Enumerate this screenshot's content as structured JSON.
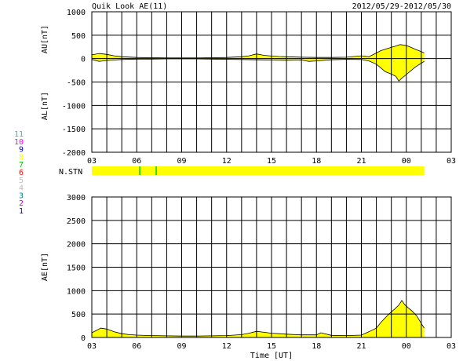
{
  "header": {
    "title": "Quik Look AE(11)",
    "date_range": "2012/05/29-2012/05/30"
  },
  "station_legend": {
    "label": "N.STN",
    "numbers": [
      {
        "text": "11",
        "color": "#00cccc"
      },
      {
        "text": "10",
        "color": "#ff00ff"
      },
      {
        "text": "9",
        "color": "#0000cc"
      },
      {
        "text": "8",
        "color": "#ffff00"
      },
      {
        "text": "7",
        "color": "#00cc00"
      },
      {
        "text": "6",
        "color": "#ff0000"
      },
      {
        "text": "5",
        "color": "#bbbbbb"
      },
      {
        "text": "4",
        "color": "#bbbbbb"
      },
      {
        "text": "3",
        "color": "#008888"
      },
      {
        "text": "2",
        "color": "#cc00cc"
      },
      {
        "text": "1",
        "color": "#0000cc"
      }
    ],
    "bar_color": "#ffff00",
    "marker_color": "#00cc00",
    "markers_hours": [
      6.2,
      7.3
    ]
  },
  "chart_data": [
    {
      "type": "area",
      "name": "AU/AL panel",
      "ylabel_upper": "AU[nT]",
      "ylabel_lower": "AL[nT]",
      "ylim": [
        -2000,
        1000
      ],
      "yticks": [
        1000,
        500,
        0,
        -500,
        -1000,
        -1500,
        -2000
      ],
      "xlim_hours": [
        3,
        27
      ],
      "xtick_labels": [
        "03",
        "06",
        "09",
        "12",
        "15",
        "18",
        "21",
        "00",
        "03"
      ],
      "grid": true,
      "fill_color": "#ffff00",
      "series": [
        {
          "key": "AU",
          "x": [
            3,
            3.5,
            4,
            4.5,
            5,
            6,
            7,
            8,
            9,
            10,
            11,
            12,
            13,
            13.5,
            14,
            14.5,
            15,
            15.5,
            16,
            17,
            18,
            19,
            20,
            21,
            21.5,
            22,
            22.3,
            22.6,
            23,
            23.3,
            23.6,
            24,
            24.3,
            24.6,
            25,
            25.2
          ],
          "values": [
            80,
            110,
            90,
            60,
            40,
            25,
            20,
            15,
            15,
            15,
            20,
            25,
            40,
            60,
            100,
            70,
            55,
            45,
            40,
            30,
            25,
            25,
            30,
            60,
            40,
            120,
            170,
            200,
            240,
            270,
            300,
            280,
            240,
            200,
            150,
            120
          ]
        },
        {
          "key": "AL",
          "x": [
            3,
            3.5,
            4,
            4.5,
            5,
            6,
            7,
            8,
            9,
            10,
            11,
            12,
            13,
            14,
            15,
            16,
            17,
            17.5,
            18,
            19,
            20,
            21,
            21.5,
            22,
            22.3,
            22.6,
            23,
            23.3,
            23.5,
            23.7,
            24,
            24.3,
            24.6,
            25,
            25.2
          ],
          "values": [
            -20,
            -60,
            -40,
            -30,
            -20,
            -10,
            -10,
            -5,
            -5,
            -5,
            -10,
            -15,
            -20,
            -25,
            -30,
            -35,
            -30,
            -60,
            -50,
            -25,
            -15,
            -20,
            -50,
            -120,
            -200,
            -280,
            -330,
            -380,
            -480,
            -420,
            -340,
            -260,
            -180,
            -100,
            -60
          ]
        }
      ]
    },
    {
      "type": "area",
      "name": "AE panel",
      "ylabel": "AE[nT]",
      "xlabel": "Time [UT]",
      "ylim": [
        0,
        3000
      ],
      "yticks": [
        3000,
        2500,
        2000,
        1500,
        1000,
        500,
        0
      ],
      "xlim_hours": [
        3,
        27
      ],
      "xtick_labels": [
        "03",
        "06",
        "09",
        "12",
        "15",
        "18",
        "21",
        "00",
        "03"
      ],
      "grid": true,
      "fill_color": "#ffff00",
      "series": [
        {
          "key": "AE",
          "x": [
            3,
            3.3,
            3.6,
            4,
            4.5,
            5,
            5.5,
            6,
            7,
            8,
            9,
            10,
            11,
            12,
            13,
            13.5,
            14,
            14.5,
            15,
            15.5,
            16,
            17,
            18,
            18.3,
            19,
            20,
            21,
            21.5,
            22,
            22.3,
            22.6,
            22.9,
            23.2,
            23.5,
            23.7,
            23.9,
            24.1,
            24.4,
            24.7,
            25,
            25.2
          ],
          "values": [
            100,
            150,
            200,
            180,
            120,
            80,
            60,
            50,
            40,
            35,
            30,
            30,
            35,
            40,
            60,
            90,
            130,
            110,
            90,
            80,
            70,
            55,
            55,
            100,
            45,
            40,
            50,
            120,
            200,
            320,
            420,
            520,
            600,
            690,
            790,
            700,
            640,
            560,
            460,
            300,
            200
          ]
        }
      ]
    }
  ]
}
